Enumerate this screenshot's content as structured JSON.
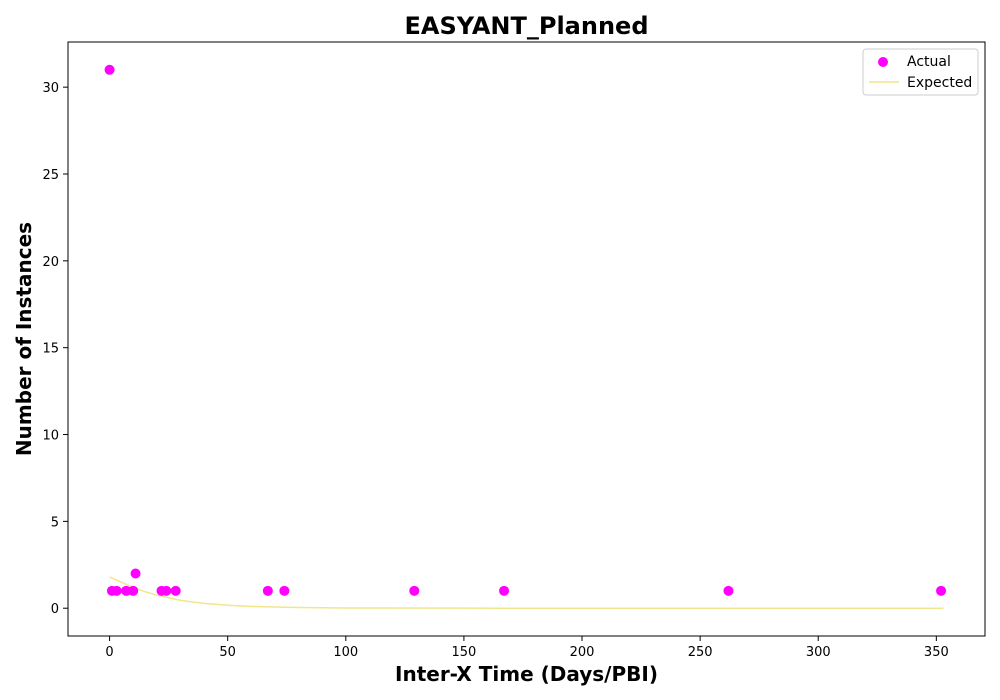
{
  "chart_data": {
    "type": "scatter",
    "title": "EASYANT_Planned",
    "xlabel": "Inter-X Time (Days/PBI)",
    "ylabel": "Number of Instances",
    "xlim": [
      -17.6,
      370.6
    ],
    "ylim": [
      -1.6,
      32.6
    ],
    "xticks": [
      0,
      50,
      100,
      150,
      200,
      250,
      300,
      350
    ],
    "yticks": [
      0,
      5,
      10,
      15,
      20,
      25,
      30
    ],
    "grid": false,
    "legend_position": "top-right",
    "series": [
      {
        "name": "Actual",
        "kind": "scatter",
        "color": "#ff00ff",
        "points": [
          [
            0,
            31
          ],
          [
            1,
            1
          ],
          [
            3,
            1
          ],
          [
            7,
            1
          ],
          [
            10,
            1
          ],
          [
            11,
            2
          ],
          [
            22,
            1
          ],
          [
            24,
            1
          ],
          [
            28,
            1
          ],
          [
            67,
            1
          ],
          [
            74,
            1
          ],
          [
            129,
            1
          ],
          [
            167,
            1
          ],
          [
            262,
            1
          ],
          [
            352,
            1
          ]
        ]
      },
      {
        "name": "Expected",
        "kind": "line",
        "color": "#f0e68c",
        "points": [
          [
            0,
            1.8
          ],
          [
            5,
            1.5
          ],
          [
            10,
            1.2
          ],
          [
            15,
            0.95
          ],
          [
            20,
            0.75
          ],
          [
            25,
            0.6
          ],
          [
            30,
            0.45
          ],
          [
            40,
            0.28
          ],
          [
            50,
            0.17
          ],
          [
            60,
            0.1
          ],
          [
            80,
            0.04
          ],
          [
            100,
            0.015
          ],
          [
            150,
            0.002
          ],
          [
            200,
            0.0
          ],
          [
            250,
            0.0
          ],
          [
            300,
            0.0
          ],
          [
            353,
            0.0
          ]
        ]
      }
    ]
  }
}
